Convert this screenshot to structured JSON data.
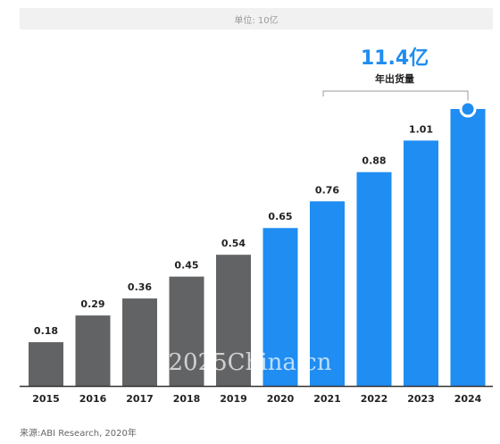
{
  "unit_label": "单位: 10亿",
  "callout": {
    "value": "11.4亿",
    "label": "年出货量"
  },
  "source": "来源:ABI Research, 2020年",
  "watermark": "2025China.cn",
  "colors": {
    "historical": "#616365",
    "forecast": "#1f8df2",
    "axis": "#333333",
    "callout_line": "#999999"
  },
  "chart_data": {
    "type": "bar",
    "categories": [
      "2015",
      "2016",
      "2017",
      "2018",
      "2019",
      "2020",
      "2021",
      "2022",
      "2023",
      "2024"
    ],
    "values": [
      0.18,
      0.29,
      0.36,
      0.45,
      0.54,
      0.65,
      0.76,
      0.88,
      1.01,
      1.14
    ],
    "value_labels": [
      "0.18",
      "0.29",
      "0.36",
      "0.45",
      "0.54",
      "0.65",
      "0.76",
      "0.88",
      "1.01",
      ""
    ],
    "series_colors": [
      "historical",
      "historical",
      "historical",
      "historical",
      "historical",
      "forecast",
      "forecast",
      "forecast",
      "forecast",
      "forecast"
    ],
    "title": "",
    "xlabel": "",
    "ylabel": "",
    "ylim": [
      0,
      1.14
    ]
  }
}
